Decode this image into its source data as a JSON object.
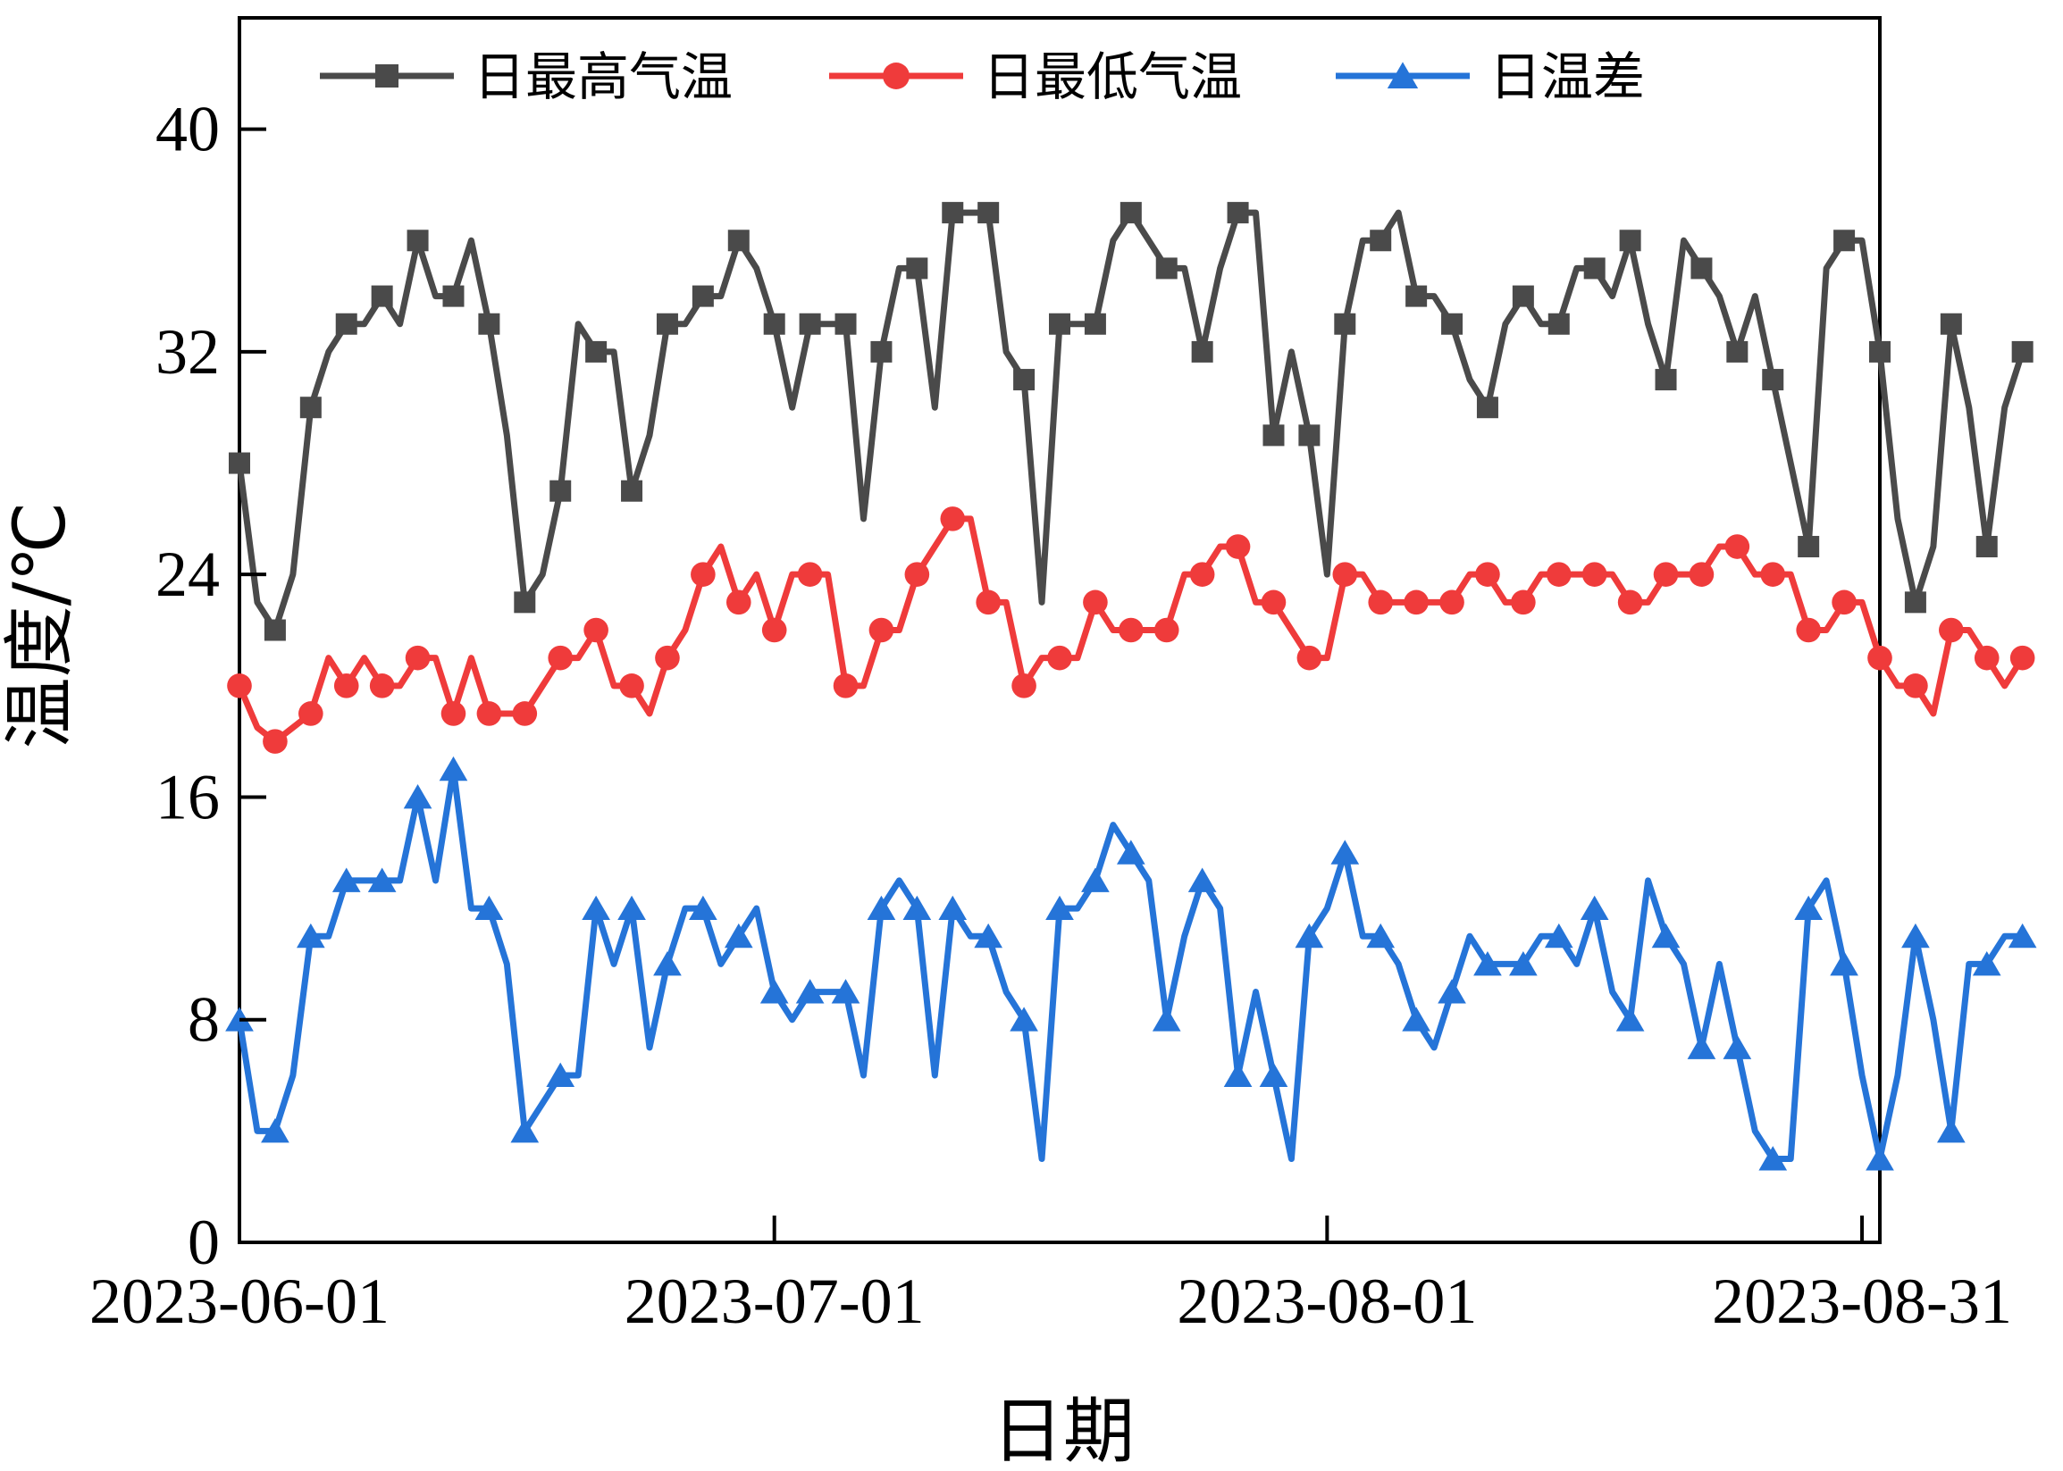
{
  "chart_data": {
    "type": "line",
    "title": "",
    "xlabel": "日期",
    "ylabel": "温度/℃",
    "ylim": [
      0,
      44
    ],
    "yticks": [
      0,
      8,
      16,
      24,
      32,
      40
    ],
    "ytick_labels": [
      "0",
      "8",
      "16",
      "24",
      "32",
      "40"
    ],
    "xlim": [
      0,
      92
    ],
    "xticks": [
      {
        "day": 0,
        "label": "2023-06-01"
      },
      {
        "day": 30,
        "label": "2023-07-01"
      },
      {
        "day": 61,
        "label": "2023-08-01"
      },
      {
        "day": 91,
        "label": "2023-08-31"
      }
    ],
    "legend_position": "top",
    "marker_every": 2,
    "series": [
      {
        "name": "日最高气温",
        "color": "#4a4a4a",
        "marker": "square",
        "values": [
          28,
          23,
          22,
          24,
          30,
          32,
          33,
          33,
          34,
          33,
          36,
          34,
          34,
          36,
          33,
          29,
          23,
          24,
          27,
          33,
          32,
          32,
          27,
          29,
          33,
          33,
          34,
          34,
          36,
          35,
          33,
          30,
          33,
          33,
          33,
          26,
          32,
          35,
          35,
          30,
          37,
          37,
          37,
          32,
          31,
          23,
          33,
          33,
          33,
          36,
          37,
          36,
          35,
          35,
          32,
          35,
          37,
          37,
          29,
          32,
          29,
          24,
          33,
          36,
          36,
          37,
          34,
          34,
          33,
          31,
          30,
          33,
          34,
          33,
          33,
          35,
          35,
          34,
          36,
          33,
          31,
          36,
          35,
          34,
          32,
          34,
          31,
          28,
          25,
          35,
          36,
          36,
          32,
          26,
          23,
          25,
          33,
          30,
          25,
          30,
          32
        ]
      },
      {
        "name": "日最低气温",
        "color": "#ef3b3b",
        "marker": "circle",
        "values": [
          20,
          18.5,
          18,
          18.5,
          19,
          21,
          20,
          21,
          20,
          20,
          21,
          21,
          19,
          21,
          19,
          19,
          19,
          20,
          21,
          21,
          22,
          20,
          20,
          19,
          21,
          22,
          24,
          25,
          23,
          24,
          22,
          24,
          24,
          24,
          20,
          20,
          22,
          22,
          24,
          25,
          26,
          26,
          23,
          23,
          20,
          21,
          21,
          21,
          23,
          22,
          22,
          22,
          22,
          24,
          24,
          25,
          25,
          23,
          23,
          22,
          21,
          21,
          24,
          24,
          23,
          23,
          23,
          23,
          23,
          24,
          24,
          23,
          23,
          24,
          24,
          24,
          24,
          24,
          23,
          23,
          24,
          24,
          24,
          25,
          25,
          24,
          24,
          24,
          22,
          22,
          23,
          23,
          21,
          20,
          20,
          19,
          22,
          22,
          21,
          20,
          21
        ]
      },
      {
        "name": "日温差",
        "color": "#2574d8",
        "marker": "triangle",
        "values": [
          8,
          4,
          4,
          6,
          11,
          11,
          13,
          13,
          13,
          13,
          16,
          13,
          17,
          12,
          12,
          10,
          4,
          5,
          6,
          6,
          12,
          10,
          12,
          7,
          10,
          12,
          12,
          10,
          11,
          12,
          9,
          8,
          9,
          9,
          9,
          6,
          12,
          13,
          12,
          6,
          12,
          11,
          11,
          9,
          8,
          3,
          12,
          12,
          13,
          15,
          14,
          13,
          8,
          11,
          13,
          12,
          6,
          9,
          6,
          3,
          11,
          12,
          14,
          11,
          11,
          10,
          8,
          7,
          9,
          11,
          10,
          10,
          10,
          11,
          11,
          10,
          12,
          9,
          8,
          13,
          11,
          10,
          7,
          10,
          7,
          4,
          3,
          3,
          12,
          13,
          10,
          6,
          3,
          6,
          11,
          8,
          4,
          10,
          10,
          11,
          11
        ]
      }
    ]
  }
}
